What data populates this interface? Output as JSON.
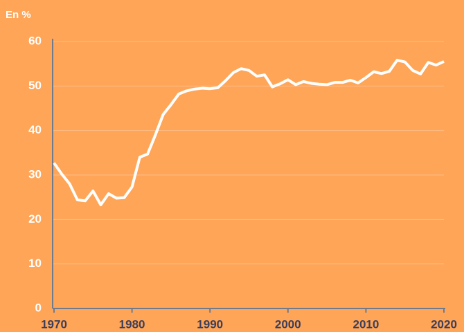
{
  "chart_data": {
    "type": "line",
    "y_axis_label": "En %",
    "x": [
      1970,
      1971,
      1972,
      1973,
      1974,
      1975,
      1976,
      1977,
      1978,
      1979,
      1980,
      1981,
      1982,
      1983,
      1984,
      1985,
      1986,
      1987,
      1988,
      1989,
      1990,
      1991,
      1992,
      1993,
      1994,
      1995,
      1996,
      1997,
      1998,
      1999,
      2000,
      2001,
      2002,
      2003,
      2004,
      2005,
      2006,
      2007,
      2008,
      2009,
      2010,
      2011,
      2012,
      2013,
      2014,
      2015,
      2016,
      2017,
      2018,
      2019,
      2020
    ],
    "series": [
      {
        "color": "#ffffff",
        "values": [
          32.7,
          30.2,
          28.0,
          24.4,
          24.2,
          26.4,
          23.3,
          25.8,
          24.8,
          24.9,
          27.3,
          34.0,
          34.7,
          39.0,
          43.6,
          45.8,
          48.2,
          48.9,
          49.3,
          49.5,
          49.4,
          49.6,
          51.2,
          53.0,
          53.9,
          53.5,
          52.2,
          52.5,
          49.8,
          50.5,
          51.4,
          50.3,
          51.0,
          50.6,
          50.4,
          50.3,
          50.8,
          50.8,
          51.3,
          50.7,
          51.9,
          53.2,
          52.8,
          53.3,
          55.8,
          55.4,
          53.5,
          52.7,
          55.3,
          54.7,
          55.5
        ]
      }
    ],
    "xlim": [
      1970,
      2020
    ],
    "xticks": [
      1970,
      1980,
      1990,
      2000,
      2010,
      2020
    ],
    "ylim": [
      0,
      60
    ],
    "yticks": [
      0,
      10,
      20,
      30,
      40,
      50,
      60
    ],
    "grid": true,
    "background": "#ffa557"
  }
}
